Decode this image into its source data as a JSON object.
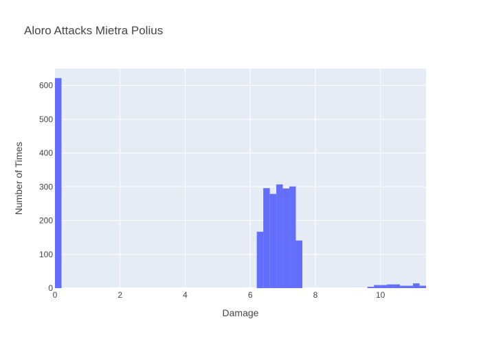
{
  "chart_data": {
    "type": "bar",
    "title": "Aloro Attacks Mietra Polius",
    "xlabel": "Damage",
    "ylabel": "Number of Times",
    "xlim": [
      0,
      11.4
    ],
    "ylim": [
      0,
      650
    ],
    "xticks": [
      0,
      2,
      4,
      6,
      8,
      10
    ],
    "yticks": [
      0,
      100,
      200,
      300,
      400,
      500,
      600
    ],
    "grid": true,
    "bar_color": "#636efa",
    "plot_background": "#e5ecf6",
    "bins": [
      {
        "x0": 0.0,
        "x1": 0.2,
        "value": 622
      },
      {
        "x0": 6.2,
        "x1": 6.4,
        "value": 167
      },
      {
        "x0": 6.4,
        "x1": 6.6,
        "value": 296
      },
      {
        "x0": 6.6,
        "x1": 6.8,
        "value": 279
      },
      {
        "x0": 6.8,
        "x1": 7.0,
        "value": 307
      },
      {
        "x0": 7.0,
        "x1": 7.2,
        "value": 295
      },
      {
        "x0": 7.2,
        "x1": 7.4,
        "value": 301
      },
      {
        "x0": 7.4,
        "x1": 7.6,
        "value": 141
      },
      {
        "x0": 9.6,
        "x1": 9.8,
        "value": 4
      },
      {
        "x0": 9.8,
        "x1": 10.0,
        "value": 9
      },
      {
        "x0": 10.0,
        "x1": 10.2,
        "value": 9
      },
      {
        "x0": 10.2,
        "x1": 10.4,
        "value": 11
      },
      {
        "x0": 10.4,
        "x1": 10.6,
        "value": 11
      },
      {
        "x0": 10.6,
        "x1": 10.8,
        "value": 7
      },
      {
        "x0": 10.8,
        "x1": 11.0,
        "value": 7
      },
      {
        "x0": 11.0,
        "x1": 11.2,
        "value": 14
      },
      {
        "x0": 11.2,
        "x1": 11.4,
        "value": 7
      }
    ]
  }
}
